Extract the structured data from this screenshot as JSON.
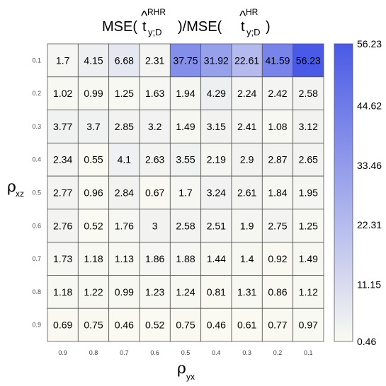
{
  "chart_data": {
    "type": "heatmap",
    "title": {
      "prefix": "MSE(",
      "mid": ")/MSE(",
      "suffix": ")",
      "num_hat": "t",
      "num_sup": "RHR",
      "num_sub": "y;D",
      "den_hat": "t",
      "den_sup": "HR",
      "den_sub": "y;D"
    },
    "xlabel": {
      "symbol": "ρ",
      "sub": "yx"
    },
    "ylabel": {
      "symbol": "ρ",
      "sub": "xz"
    },
    "x_categories": [
      "0.9",
      "0.8",
      "0.7",
      "0.6",
      "0.5",
      "0.4",
      "0.3",
      "0.2",
      "0.1"
    ],
    "y_categories": [
      "0.1",
      "0.2",
      "0.3",
      "0.4",
      "0.5",
      "0.6",
      "0.7",
      "0.8",
      "0.9"
    ],
    "values": [
      [
        1.7,
        4.15,
        6.68,
        2.31,
        37.75,
        31.92,
        22.61,
        41.59,
        56.23
      ],
      [
        1.02,
        0.99,
        1.25,
        1.63,
        1.94,
        4.29,
        2.24,
        2.42,
        2.58
      ],
      [
        3.77,
        3.7,
        2.85,
        3.2,
        1.49,
        3.15,
        2.41,
        1.08,
        3.12
      ],
      [
        2.34,
        0.55,
        4.1,
        2.63,
        3.55,
        2.19,
        2.9,
        2.87,
        2.65
      ],
      [
        2.77,
        0.96,
        2.84,
        0.67,
        1.7,
        3.24,
        2.61,
        1.84,
        1.95
      ],
      [
        2.76,
        0.52,
        1.76,
        3,
        2.58,
        2.51,
        1.9,
        2.75,
        1.25
      ],
      [
        1.73,
        1.18,
        1.13,
        1.86,
        1.88,
        1.44,
        1.4,
        0.92,
        1.49
      ],
      [
        1.18,
        1.22,
        0.99,
        1.23,
        1.24,
        0.81,
        1.31,
        0.86,
        1.12
      ],
      [
        0.69,
        0.75,
        0.46,
        0.52,
        0.75,
        0.46,
        0.61,
        0.77,
        0.97
      ]
    ],
    "colorbar": {
      "ticks": [
        "0.46",
        "11.15",
        "22.31",
        "33.46",
        "44.62",
        "56.23"
      ],
      "min": 0.46,
      "max": 56.23,
      "low_color": "#fafaf2",
      "high_color": "#4a5ae6"
    },
    "grid": true
  }
}
